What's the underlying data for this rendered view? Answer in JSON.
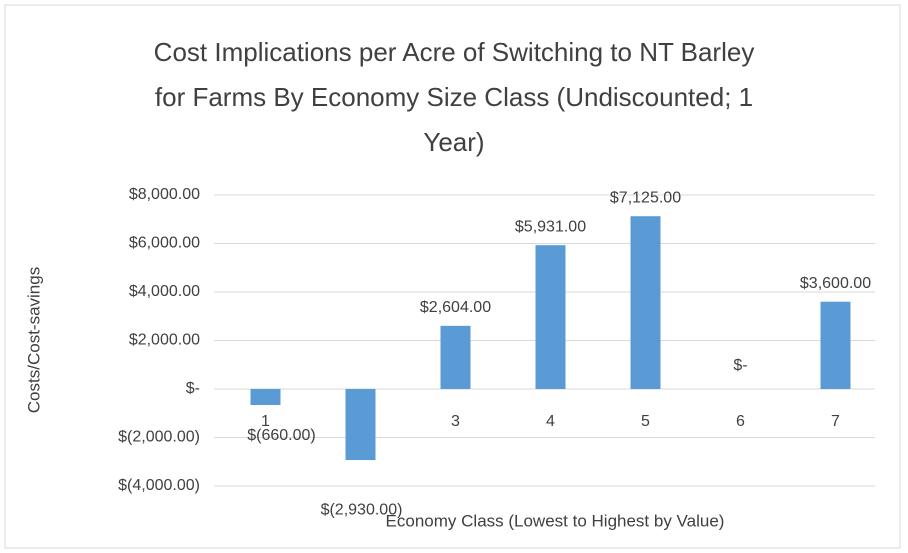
{
  "chart_data": {
    "type": "bar",
    "title": "Cost Implications per Acre of Switching to NT Barley for Farms By Economy Size Class (Undiscounted; 1 Year)",
    "x_label": "Economy Class (Lowest to Highest by Value)",
    "y_label": "Costs/Cost-savings",
    "categories": [
      "1",
      "2",
      "3",
      "4",
      "5",
      "6",
      "7"
    ],
    "values": [
      -660,
      -2930,
      2604,
      5931,
      7125,
      0,
      3600
    ],
    "value_labels": [
      "$(660.00)",
      "$(2,930.00)",
      "$2,604.00",
      "$5,931.00",
      "$7,125.00",
      "$-",
      "$3,600.00"
    ],
    "color": "#5b9bd5",
    "ylim": [
      -4000,
      8000
    ],
    "yticks": [
      {
        "value": -4000,
        "label": "$(4,000.00)"
      },
      {
        "value": -2000,
        "label": "$(2,000.00)"
      },
      {
        "value": 0,
        "label": "$-"
      },
      {
        "value": 2000,
        "label": "$2,000.00"
      },
      {
        "value": 4000,
        "label": "$4,000.00"
      },
      {
        "value": 6000,
        "label": "$6,000.00"
      },
      {
        "value": 8000,
        "label": "$8,000.00"
      }
    ],
    "grid": true
  }
}
